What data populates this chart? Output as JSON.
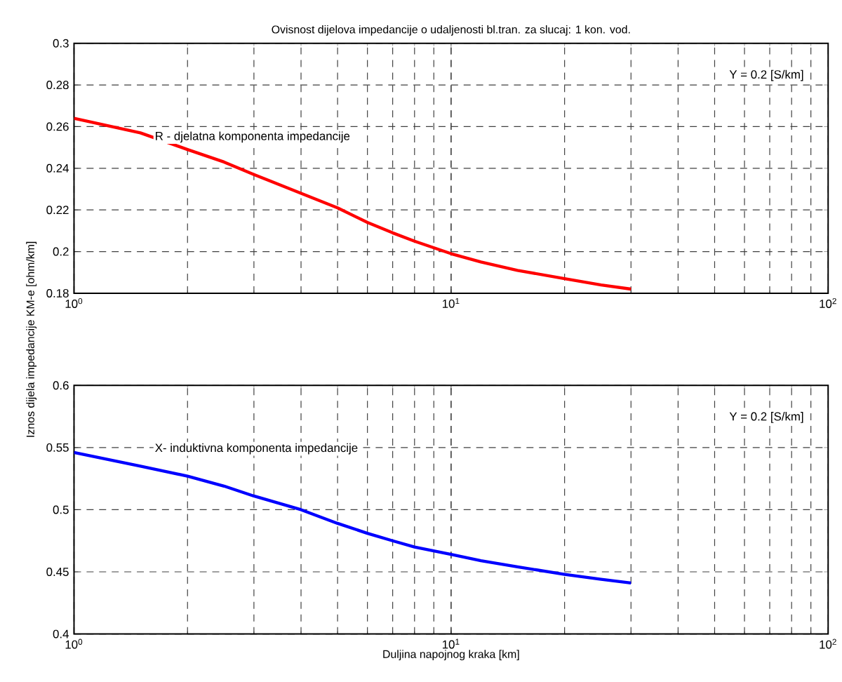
{
  "chart_data": [
    {
      "type": "line",
      "title": "Ovisnost dijelova impedancije o udaljenosti bl.tran. za slucaj: 1 kon. vod.",
      "x": [
        1,
        1.5,
        2,
        2.5,
        3,
        4,
        5,
        6,
        7,
        8,
        10,
        12,
        15,
        20,
        25,
        30
      ],
      "series": [
        {
          "color": "#ff0000",
          "values": [
            0.264,
            0.257,
            0.249,
            0.243,
            0.237,
            0.228,
            0.221,
            0.214,
            0.209,
            0.205,
            0.199,
            0.195,
            0.191,
            0.187,
            0.184,
            0.182
          ]
        }
      ],
      "log": "x",
      "grid": true,
      "marker": "none",
      "line_style": "solid",
      "xlim": [
        1,
        100
      ],
      "xticks": [
        {
          "value": 1,
          "label": "10$^{0}$"
        },
        {
          "value": 10,
          "label": "10$^{1}$"
        },
        {
          "value": 100,
          "label": "10$^{2}$"
        }
      ],
      "ylim": [
        0.18,
        0.3
      ],
      "yticks": [
        0.18,
        0.2,
        0.22,
        0.24,
        0.26,
        0.28,
        0.3
      ],
      "annotations": [
        "R - djelatna komponenta impedancije",
        "Y = 0.2 [S/km]"
      ]
    },
    {
      "type": "line",
      "xlabel": "Duljina napojnog kraka [km]",
      "ylabel": "Iznos  dijela impedancije KM-e [ohm/km]",
      "x": [
        1,
        1.5,
        2,
        2.5,
        3,
        4,
        5,
        6,
        7,
        8,
        10,
        12,
        15,
        20,
        25,
        30
      ],
      "series": [
        {
          "color": "#0000ff",
          "values": [
            0.546,
            0.535,
            0.527,
            0.519,
            0.511,
            0.5,
            0.489,
            0.481,
            0.475,
            0.47,
            0.464,
            0.459,
            0.454,
            0.448,
            0.444,
            0.441
          ]
        }
      ],
      "log": "x",
      "grid": true,
      "marker": "none",
      "line_style": "solid",
      "xlim": [
        1,
        100
      ],
      "xticks": [
        {
          "value": 1,
          "label": "10$^{0}$"
        },
        {
          "value": 10,
          "label": "10$^{1}$"
        },
        {
          "value": 100,
          "label": "10$^{2}$"
        }
      ],
      "ylim": [
        0.4,
        0.6
      ],
      "yticks": [
        0.4,
        0.45,
        0.5,
        0.55,
        0.6
      ],
      "annotations": [
        "X- induktivna komponenta impedancije",
        "Y = 0.2 [S/km]"
      ]
    }
  ]
}
